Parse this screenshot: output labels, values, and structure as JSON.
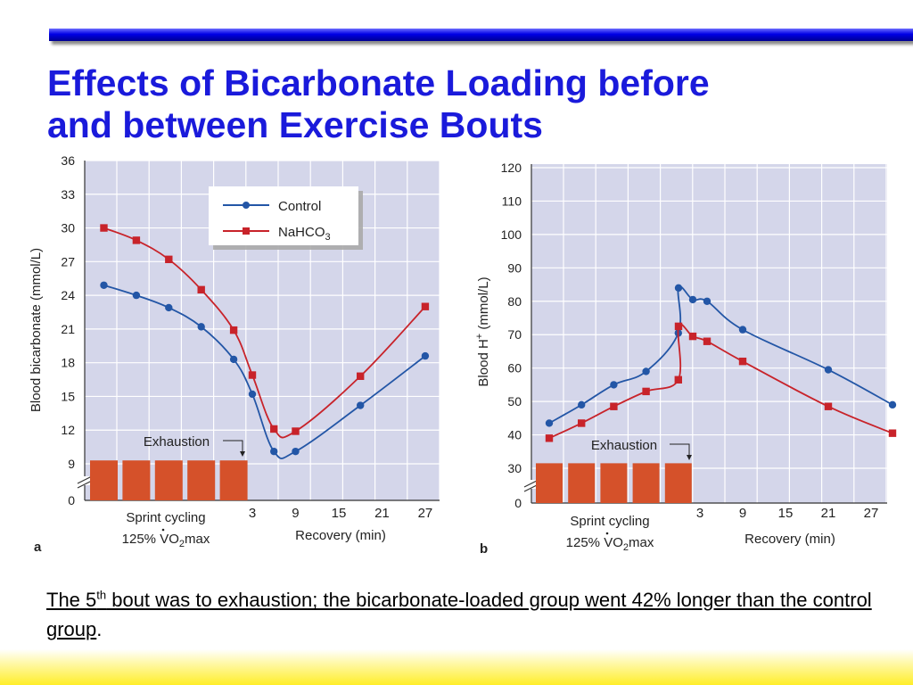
{
  "title_line1": "Effects of Bicarbonate Loading before",
  "title_line2": "and between Exercise Bouts",
  "caption": {
    "pre": "The 5",
    "sup": "th",
    "rest": " bout was to exhaustion; the bicarbonate-loaded group went 42% longer than the control group",
    "end": "."
  },
  "colors": {
    "control": "#2356a6",
    "nahco3": "#c8232a",
    "bar": "#d5512a",
    "plot_bg": "#d4d6ea"
  },
  "chart_data": [
    {
      "type": "line",
      "panel_label": "a",
      "ylabel": "Blood bicarbonate  (mmol/L)",
      "xlabel": "Recovery (min)",
      "ylim": [
        0,
        36
      ],
      "yticks": [
        0,
        9,
        12,
        15,
        18,
        21,
        24,
        27,
        30,
        33,
        36
      ],
      "xticks": [
        "3",
        "9",
        "15",
        "21",
        "27"
      ],
      "sprint_label_1": "Sprint cycling",
      "sprint_label_2_pre": "125% V",
      "sprint_label_2_sub": "O",
      "sprint_label_2_subscript": "2",
      "sprint_label_2_post": "max",
      "exhaustion_label": "Exhaustion",
      "sprint_bouts": 5,
      "legend": [
        {
          "name": "Control",
          "marker": "circle"
        },
        {
          "name_pre": "NaHCO",
          "name_sub": "3",
          "marker": "square"
        }
      ],
      "series": [
        {
          "key": "control",
          "marker": "circle",
          "points": [
            [
              "bout 1",
              24.9
            ],
            [
              "bout 2",
              24.0
            ],
            [
              "bout 3",
              22.9
            ],
            [
              "bout 4",
              21.2
            ],
            [
              "bout 5",
              18.3
            ],
            [
              "3",
              15.2
            ],
            [
              "6",
              10.1
            ],
            [
              "9",
              10.1
            ],
            [
              "18",
              14.2
            ],
            [
              "27",
              18.6
            ]
          ]
        },
        {
          "key": "nahco3",
          "marker": "square",
          "points": [
            [
              "bout 1",
              30.0
            ],
            [
              "bout 2",
              28.9
            ],
            [
              "bout 3",
              27.2
            ],
            [
              "bout 4",
              24.5
            ],
            [
              "bout 5",
              20.9
            ],
            [
              "3",
              16.9
            ],
            [
              "6",
              12.1
            ],
            [
              "9",
              11.9
            ],
            [
              "18",
              16.8
            ],
            [
              "27",
              23.0
            ]
          ]
        }
      ]
    },
    {
      "type": "line",
      "panel_label": "b",
      "ylabel_pre": "Blood H",
      "ylabel_sup": "+",
      "ylabel_post": " (mmol/L)",
      "xlabel": "Recovery (min)",
      "ylim": [
        0,
        120
      ],
      "yticks": [
        0,
        30,
        40,
        50,
        60,
        70,
        80,
        90,
        100,
        110,
        120
      ],
      "xticks": [
        "3",
        "9",
        "15",
        "21",
        "27"
      ],
      "sprint_label_1": "Sprint cycling",
      "sprint_label_2_pre": "125% V",
      "sprint_label_2_sub": "O",
      "sprint_label_2_subscript": "2",
      "sprint_label_2_post": "max",
      "exhaustion_label": "Exhaustion",
      "sprint_bouts": 5,
      "series": [
        {
          "key": "control",
          "marker": "circle",
          "points": [
            [
              "bout 1",
              43.5
            ],
            [
              "bout 2",
              49.0
            ],
            [
              "bout 3",
              55.0
            ],
            [
              "bout 4",
              59.0
            ],
            [
              "bout 5",
              70.5
            ],
            [
              "0",
              84.0
            ],
            [
              "2",
              80.5
            ],
            [
              "4",
              80.0
            ],
            [
              "9",
              71.5
            ],
            [
              "21",
              59.5
            ],
            [
              "30",
              49.0
            ]
          ]
        },
        {
          "key": "nahco3",
          "marker": "square",
          "points": [
            [
              "bout 1",
              39.0
            ],
            [
              "bout 2",
              43.5
            ],
            [
              "bout 3",
              48.5
            ],
            [
              "bout 4",
              53.0
            ],
            [
              "bout 5",
              56.5
            ],
            [
              "0",
              72.5
            ],
            [
              "2",
              69.5
            ],
            [
              "4",
              68.0
            ],
            [
              "9",
              62.0
            ],
            [
              "21",
              48.5
            ],
            [
              "30",
              40.5
            ]
          ]
        }
      ]
    }
  ]
}
